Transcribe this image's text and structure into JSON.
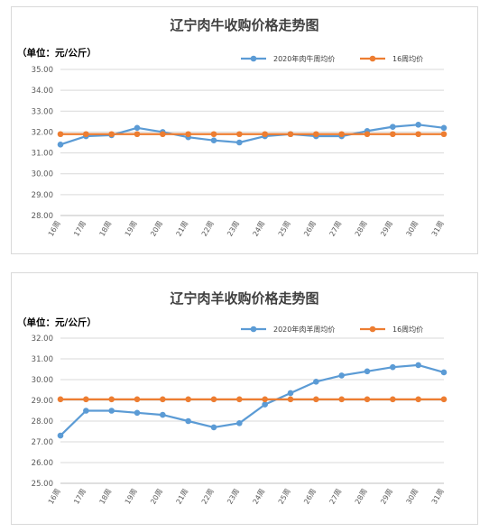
{
  "chart_data": [
    {
      "type": "line",
      "title": "辽宁肉牛收购价格走势图",
      "unit_label": "（单位：元/公斤）",
      "categories": [
        "16周",
        "17周",
        "18周",
        "19周",
        "20周",
        "21周",
        "22周",
        "23周",
        "24周",
        "25周",
        "26周",
        "27周",
        "28周",
        "29周",
        "30周",
        "31周"
      ],
      "ylim": [
        28,
        35
      ],
      "yticks": [
        "28.00",
        "29.00",
        "30.00",
        "31.00",
        "32.00",
        "33.00",
        "34.00",
        "35.00"
      ],
      "grid": true,
      "legend_position": "top-right",
      "series": [
        {
          "name": "2020年肉牛周均价",
          "color": "#5b9bd5",
          "values": [
            31.4,
            31.8,
            31.85,
            32.2,
            32.0,
            31.75,
            31.6,
            31.5,
            31.8,
            31.9,
            31.8,
            31.8,
            32.05,
            32.25,
            32.35,
            32.2
          ]
        },
        {
          "name": "16周均价",
          "color": "#ed7d31",
          "values": [
            31.9,
            31.9,
            31.9,
            31.9,
            31.9,
            31.9,
            31.9,
            31.9,
            31.9,
            31.9,
            31.9,
            31.9,
            31.9,
            31.9,
            31.9,
            31.9
          ]
        }
      ]
    },
    {
      "type": "line",
      "title": "辽宁肉羊收购价格走势图",
      "unit_label": "（单位：元/公斤）",
      "categories": [
        "16周",
        "17周",
        "18周",
        "19周",
        "20周",
        "21周",
        "22周",
        "23周",
        "24周",
        "25周",
        "26周",
        "27周",
        "28周",
        "29周",
        "30周",
        "31周"
      ],
      "ylim": [
        25,
        32
      ],
      "yticks": [
        "25.00",
        "26.00",
        "27.00",
        "28.00",
        "29.00",
        "30.00",
        "31.00",
        "32.00"
      ],
      "grid": true,
      "legend_position": "top-right",
      "series": [
        {
          "name": "2020年肉羊周均价",
          "color": "#5b9bd5",
          "values": [
            27.3,
            28.5,
            28.5,
            28.4,
            28.3,
            28.0,
            27.7,
            27.9,
            28.8,
            29.35,
            29.9,
            30.2,
            30.4,
            30.6,
            30.7,
            30.35
          ]
        },
        {
          "name": "16周均价",
          "color": "#ed7d31",
          "values": [
            29.05,
            29.05,
            29.05,
            29.05,
            29.05,
            29.05,
            29.05,
            29.05,
            29.05,
            29.05,
            29.05,
            29.05,
            29.05,
            29.05,
            29.05,
            29.05
          ]
        }
      ]
    }
  ]
}
